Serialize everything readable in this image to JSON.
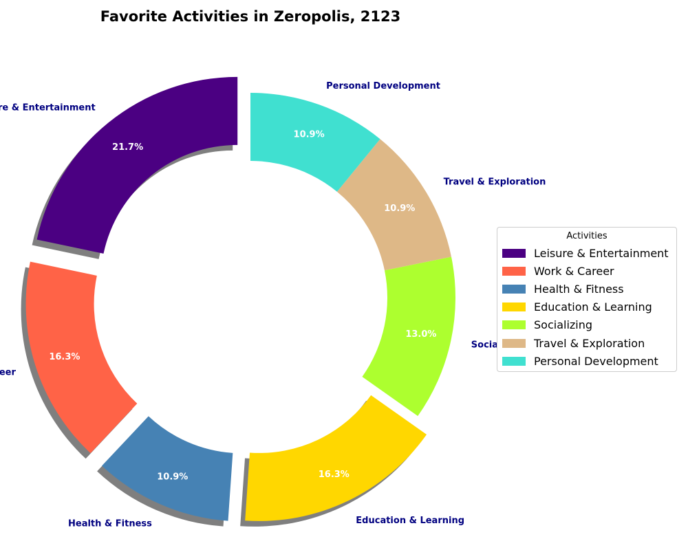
{
  "chart_data": {
    "type": "pie",
    "title": "Favorite Activities in Zeropolis, 2123",
    "donut": true,
    "legend_title": "Activities",
    "legend_position": "center-right",
    "slices": [
      {
        "label": "Leisure & Entertainment",
        "percent": 21.7,
        "pct_label": "21.7%",
        "color": "#4B0082",
        "exploded": true
      },
      {
        "label": "Work & Career",
        "percent": 16.3,
        "pct_label": "16.3%",
        "color": "#FF6347",
        "exploded": true
      },
      {
        "label": "Health & Fitness",
        "percent": 10.9,
        "pct_label": "10.9%",
        "color": "#4682B4",
        "exploded": true
      },
      {
        "label": "Education & Learning",
        "percent": 16.3,
        "pct_label": "16.3%",
        "color": "#FFD700",
        "exploded": true
      },
      {
        "label": "Socializing",
        "percent": 13.0,
        "pct_label": "13.0%",
        "color": "#ADFF2F",
        "exploded": false
      },
      {
        "label": "Travel & Exploration",
        "percent": 10.9,
        "pct_label": "10.9%",
        "color": "#DEB887",
        "exploded": false
      },
      {
        "label": "Personal Development",
        "percent": 10.9,
        "pct_label": "10.9%",
        "color": "#40E0D0",
        "exploded": false
      }
    ]
  }
}
